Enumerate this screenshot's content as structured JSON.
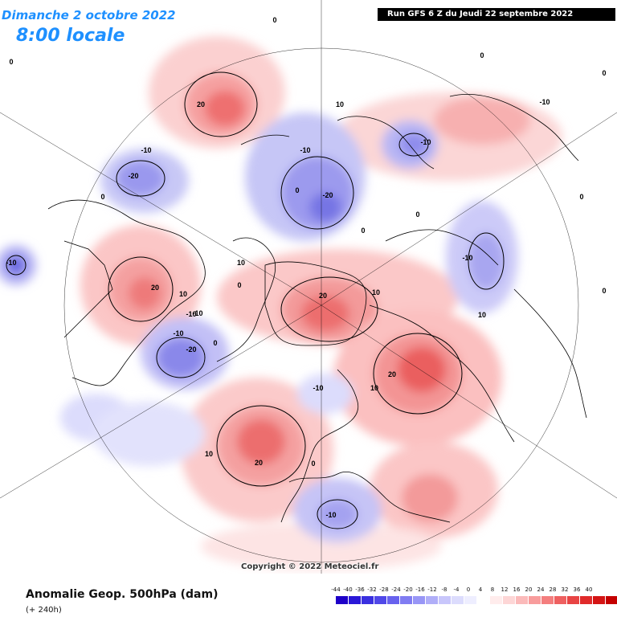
{
  "header": {
    "date": "Dimanche 2 octobre 2022",
    "time": "8:00 locale",
    "run": "Run GFS 6 Z du Jeudi 22 septembre 2022"
  },
  "copyright": "Copyright © 2022 Meteociel.fr",
  "footer": {
    "title": "Anomalie Geop. 500hPa (dam)",
    "subtitle": "(+ 240h)"
  },
  "legend": {
    "labels": [
      "-44",
      "-40",
      "-36",
      "-32",
      "-28",
      "-24",
      "-20",
      "-16",
      "-12",
      "-8",
      "-4",
      "0",
      "4",
      "8",
      "12",
      "16",
      "20",
      "24",
      "28",
      "32",
      "36",
      "40"
    ],
    "colors": [
      "#1e00c8",
      "#2a18d8",
      "#3a30e0",
      "#5048e8",
      "#6862ee",
      "#807cf2",
      "#9896f6",
      "#b0aef8",
      "#c8c6fb",
      "#dcdcfd",
      "#eeeeff",
      "#ffffff",
      "#ffecec",
      "#fdd6d6",
      "#fbbaba",
      "#f89c9c",
      "#f47e7e",
      "#ee6060",
      "#e84444",
      "#e02a2a",
      "#d41414",
      "#c40000"
    ]
  },
  "contour_labels": [
    "0",
    "0",
    "0",
    "0",
    "0",
    "0",
    "0",
    "0",
    "0",
    "0",
    "0",
    "0",
    "10",
    "10",
    "10",
    "10",
    "10",
    "10",
    "10",
    "-10",
    "-10",
    "-10",
    "-10",
    "-10",
    "-10",
    "-10",
    "-10",
    "-10",
    "-10",
    "20",
    "20",
    "20",
    "20",
    "20",
    "20",
    "-20",
    "-20",
    "-20",
    "0",
    "-10"
  ],
  "anomaly_centers": [
    {
      "sign": "positive",
      "value": "20"
    },
    {
      "sign": "positive",
      "value": "20"
    },
    {
      "sign": "positive",
      "value": "20"
    },
    {
      "sign": "positive",
      "value": "20"
    },
    {
      "sign": "positive",
      "value": "20"
    },
    {
      "sign": "negative",
      "value": "-20"
    },
    {
      "sign": "negative",
      "value": "-20"
    },
    {
      "sign": "negative",
      "value": "-20"
    },
    {
      "sign": "negative",
      "value": "-10"
    },
    {
      "sign": "negative",
      "value": "-10"
    },
    {
      "sign": "negative",
      "value": "-10"
    },
    {
      "sign": "negative",
      "value": "-10"
    },
    {
      "sign": "negative",
      "value": "-10"
    }
  ]
}
